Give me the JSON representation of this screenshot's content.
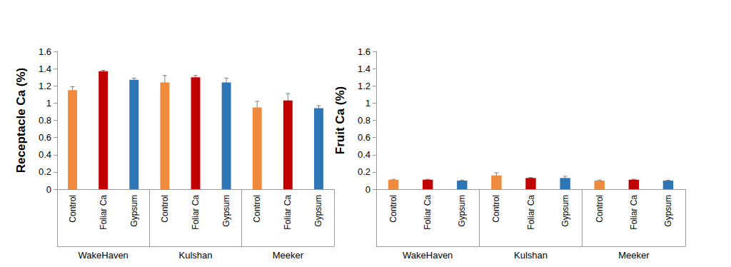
{
  "chart_data": [
    {
      "type": "bar",
      "ylabel": "Receptacle Ca (%)",
      "categories": [
        "Control",
        "Foliar Ca",
        "Gypsum",
        "Control",
        "Foliar Ca",
        "Gypsum",
        "Control",
        "Foliar Ca",
        "Gypsum"
      ],
      "groups": [
        "WakeHaven",
        "Kulshan",
        "Meeker"
      ],
      "values": [
        1.15,
        1.37,
        1.27,
        1.24,
        1.3,
        1.24,
        0.95,
        1.03,
        0.94
      ],
      "errors": [
        0.04,
        0.01,
        0.02,
        0.08,
        0.02,
        0.05,
        0.07,
        0.08,
        0.03
      ],
      "colors": [
        "#F08A3C",
        "#C00000",
        "#2E75B6",
        "#F08A3C",
        "#C00000",
        "#2E75B6",
        "#F08A3C",
        "#C00000",
        "#2E75B6"
      ],
      "ylim": [
        0,
        1.6
      ],
      "yticks": [
        0,
        0.2,
        0.4,
        0.6,
        0.8,
        1,
        1.2,
        1.4,
        1.6
      ],
      "grid": false
    },
    {
      "type": "bar",
      "ylabel": "Fruit Ca (%)",
      "categories": [
        "Control",
        "Foliar Ca",
        "Gypsum",
        "Control",
        "Foliar Ca",
        "Gypsum",
        "Control",
        "Foliar Ca",
        "Gypsum"
      ],
      "groups": [
        "WakeHaven",
        "Kulshan",
        "Meeker"
      ],
      "values": [
        0.11,
        0.11,
        0.1,
        0.16,
        0.13,
        0.13,
        0.1,
        0.11,
        0.1
      ],
      "errors": [
        0.005,
        0.005,
        0.005,
        0.03,
        0.005,
        0.02,
        0.005,
        0.005,
        0.005
      ],
      "colors": [
        "#F08A3C",
        "#C00000",
        "#2E75B6",
        "#F08A3C",
        "#C00000",
        "#2E75B6",
        "#F08A3C",
        "#C00000",
        "#2E75B6"
      ],
      "ylim": [
        0,
        1.6
      ],
      "yticks": [
        0,
        0.2,
        0.4,
        0.6,
        0.8,
        1,
        1.2,
        1.4,
        1.6
      ],
      "grid": false
    }
  ]
}
